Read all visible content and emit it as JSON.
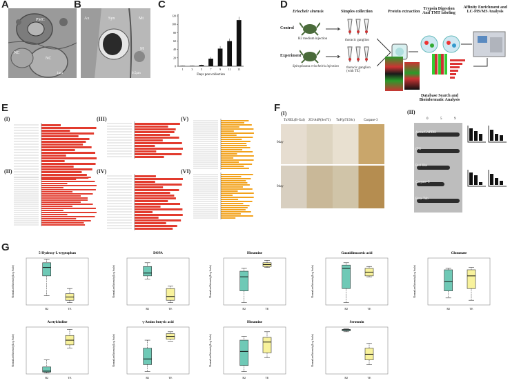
{
  "panels": {
    "A": {
      "label": "A",
      "annotations": [
        "PMC",
        "NC",
        "NC",
        "1μm"
      ]
    },
    "B": {
      "label": "B",
      "annotations": [
        "Ax",
        "Syn",
        "Mt",
        "M",
        "0.5μm"
      ]
    },
    "C": {
      "label": "C"
    },
    "D": {
      "label": "D"
    },
    "E": {
      "label": "E",
      "subpanels": [
        "(I)",
        "(II)",
        "(III)",
        "(IV)",
        "(V)",
        "(VI)"
      ]
    },
    "F": {
      "label": "F",
      "subpanels": [
        "(I)",
        "(II)"
      ]
    },
    "G": {
      "label": "G"
    }
  },
  "panel_c_chart": {
    "type": "bar",
    "xlabel": "Days post collection",
    "categories": [
      "1",
      "3",
      "5",
      "7",
      "9",
      "11",
      "13"
    ],
    "values": [
      1,
      1,
      3,
      18,
      42,
      60,
      110
    ],
    "errors": [
      0.5,
      0.5,
      1,
      4,
      6,
      6,
      8
    ],
    "ylim": [
      0,
      125
    ],
    "yticks": [
      "0",
      "20",
      "40",
      "60",
      "80",
      "100",
      "120"
    ]
  },
  "panel_d": {
    "species": "Eriocheir sinensis",
    "steps": [
      "Simples collection",
      "Protein extraction",
      "Trypsin Digestion And TMT labeling",
      "Affinity Enrichment and LC-MS/MS Analysis"
    ],
    "control_label": "Control",
    "control_sub": "B2 medium injection",
    "control_tissue": "thoracic ganglion",
    "experiment_label": "Experiment",
    "experiment_sub": "Spiroplasma eriocheiris injection",
    "experiment_tissue": "thoracic ganglion (with TE)",
    "analysis": "Database Search and Bioinformatic Analysis"
  },
  "panel_f": {
    "stains": [
      "TuNEL(B-Gal)",
      "ZO/AdP(Ser73)",
      "TnF(pT150c)",
      "Caspase-3"
    ],
    "rows": [
      "0day",
      "9day"
    ],
    "days": [
      "0",
      "5",
      "9"
    ],
    "westerns": [
      "Actin/GAPDH",
      "tTG",
      "Perl-like",
      "Caspase-3",
      "Beta-Tub"
    ]
  },
  "chart_data": [
    {
      "type": "box",
      "title": "5-Hydroxy-L-tryptophan",
      "ylabel": "Normalized Intensity(Log Scale)",
      "categories": [
        "B2",
        "TE"
      ],
      "colors": [
        "#6fc9b6",
        "#f8f29c"
      ],
      "boxes": [
        {
          "min": 0.2,
          "q1": 0.62,
          "median": 0.8,
          "q3": 0.9,
          "max": 0.97
        },
        {
          "min": 0.05,
          "q1": 0.1,
          "median": 0.17,
          "q3": 0.24,
          "max": 0.35
        }
      ]
    },
    {
      "type": "box",
      "title": "DOPA",
      "ylabel": "Normalized Intensity(Log Scale)",
      "categories": [
        "B2",
        "TE"
      ],
      "colors": [
        "#6fc9b6",
        "#f8f29c"
      ],
      "boxes": [
        {
          "min": 0.55,
          "q1": 0.62,
          "median": 0.68,
          "q3": 0.82,
          "max": 0.9
        },
        {
          "min": 0.05,
          "q1": 0.1,
          "median": 0.18,
          "q3": 0.35,
          "max": 0.4
        }
      ]
    },
    {
      "type": "box",
      "title": "Histamine",
      "ylabel": "Normalized Intensity(Log Scale)",
      "categories": [
        "B2",
        "TE"
      ],
      "colors": [
        "#6fc9b6",
        "#f8f29c"
      ],
      "boxes": [
        {
          "min": 0.05,
          "q1": 0.3,
          "median": 0.6,
          "q3": 0.72,
          "max": 0.78
        },
        {
          "min": 0.8,
          "q1": 0.82,
          "median": 0.86,
          "q3": 0.9,
          "max": 0.95
        }
      ]
    },
    {
      "type": "box",
      "title": "Guanidinoacetic acid",
      "ylabel": "Normalized Intensity(Log Scale)",
      "categories": [
        "B2",
        "TE"
      ],
      "colors": [
        "#6fc9b6",
        "#f8f29c"
      ],
      "boxes": [
        {
          "min": 0.05,
          "q1": 0.35,
          "median": 0.78,
          "q3": 0.85,
          "max": 0.9
        },
        {
          "min": 0.6,
          "q1": 0.62,
          "median": 0.7,
          "q3": 0.78,
          "max": 0.82
        }
      ]
    },
    {
      "type": "box",
      "title": "Glutamate",
      "ylabel": "Normalized Intensity(Log Scale)",
      "categories": [
        "B2",
        "TE"
      ],
      "colors": [
        "#6fc9b6",
        "#f8f29c"
      ],
      "boxes": [
        {
          "min": 0.15,
          "q1": 0.3,
          "median": 0.5,
          "q3": 0.75,
          "max": 0.78
        },
        {
          "min": 0.1,
          "q1": 0.35,
          "median": 0.62,
          "q3": 0.75,
          "max": 0.8
        }
      ]
    },
    {
      "type": "box",
      "title": "Acetylcholine",
      "ylabel": "Normalized Intensity(Log Scale)",
      "categories": [
        "B2",
        "TE"
      ],
      "colors": [
        "#6fc9b6",
        "#f8f29c"
      ],
      "boxes": [
        {
          "min": 0.02,
          "q1": 0.04,
          "median": 0.06,
          "q3": 0.15,
          "max": 0.3
        },
        {
          "min": 0.55,
          "q1": 0.62,
          "median": 0.72,
          "q3": 0.82,
          "max": 0.95
        }
      ]
    },
    {
      "type": "box",
      "title": "γ-Amino butyric acid",
      "ylabel": "Normalized Intensity(Log Scale)",
      "categories": [
        "B2",
        "TE"
      ],
      "colors": [
        "#6fc9b6",
        "#f8f29c"
      ],
      "boxes": [
        {
          "min": 0.05,
          "q1": 0.2,
          "median": 0.32,
          "q3": 0.55,
          "max": 0.72
        },
        {
          "min": 0.7,
          "q1": 0.74,
          "median": 0.8,
          "q3": 0.86,
          "max": 0.9
        }
      ]
    },
    {
      "type": "box",
      "title": "Histamine",
      "ylabel": "Normalized Intensity(Log Scale)",
      "categories": [
        "B2",
        "TE"
      ],
      "colors": [
        "#6fc9b6",
        "#f8f29c"
      ],
      "boxes": [
        {
          "min": 0.05,
          "q1": 0.18,
          "median": 0.48,
          "q3": 0.72,
          "max": 0.8
        },
        {
          "min": 0.35,
          "q1": 0.45,
          "median": 0.68,
          "q3": 0.78,
          "max": 0.9
        }
      ]
    },
    {
      "type": "box",
      "title": "Serotonin",
      "ylabel": "Normalized Intensity(Log Scale)",
      "categories": [
        "B2",
        "TE"
      ],
      "colors": [
        "#6fc9b6",
        "#f8f29c"
      ],
      "boxes": [
        {
          "min": 0.9,
          "q1": 0.92,
          "median": 0.94,
          "q3": 0.95,
          "max": 0.96
        },
        {
          "min": 0.2,
          "q1": 0.3,
          "median": 0.42,
          "q3": 0.55,
          "max": 0.65
        }
      ]
    }
  ]
}
